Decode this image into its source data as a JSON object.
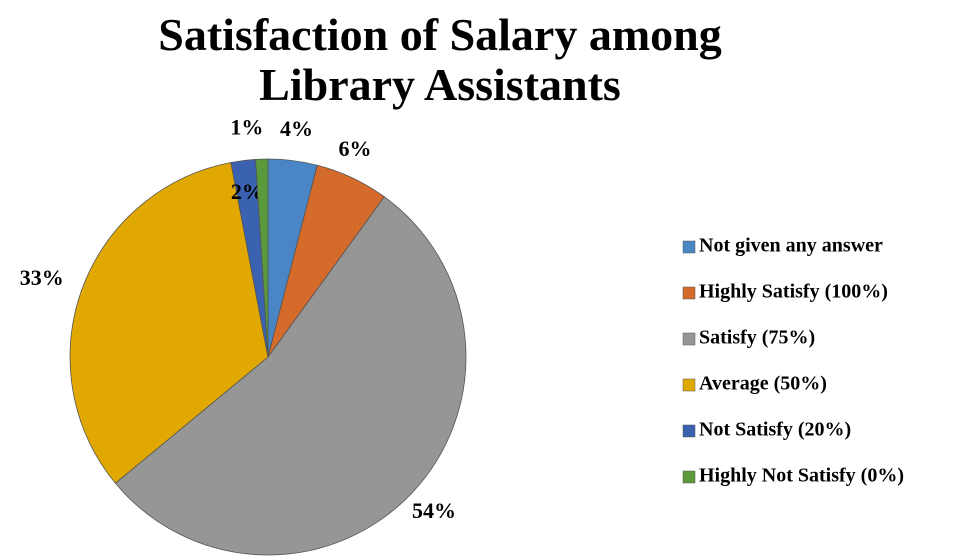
{
  "chart_data": {
    "type": "pie",
    "title": "Satisfaction of Salary among Library Assistants",
    "categories": [
      "Not given any answer",
      "Highly Satisfy (100%)",
      "Satisfy (75%)",
      "Average (50%)",
      "Not Satisfy (20%)",
      "Highly Not Satisfy (0%)"
    ],
    "values": [
      4,
      6,
      54,
      33,
      2,
      1
    ],
    "value_labels": [
      "4%",
      "6%",
      "54%",
      "33%",
      "2%",
      "1%"
    ],
    "colors": [
      "#4a86c5",
      "#d46b2a",
      "#969696",
      "#e0a800",
      "#3a62b0",
      "#5a9a3c"
    ],
    "legend": "right"
  }
}
